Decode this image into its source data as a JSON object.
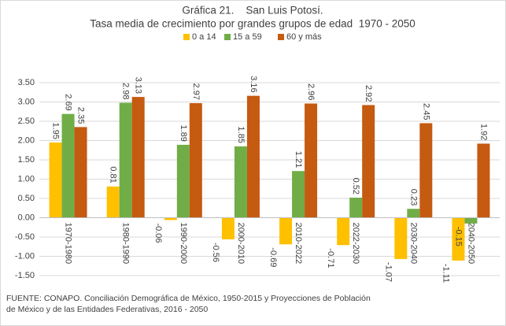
{
  "chart_data": {
    "type": "bar",
    "title": "Gráfica 21.    San Luis Potosí.",
    "subtitle": "Tasa media de crecimiento por grandes grupos de edad  1970 - 2050",
    "categories": [
      "1970-1980",
      "1980-1990",
      "1990-2000",
      "2000-2010",
      "2010-2022",
      "2022-2030",
      "2030-2040",
      "2040-2050"
    ],
    "series": [
      {
        "name": "0 a 14",
        "color": "#ffc000",
        "values": [
          1.95,
          0.81,
          -0.06,
          -0.56,
          -0.69,
          -0.71,
          -1.07,
          -1.11
        ]
      },
      {
        "name": "15 a 59",
        "color": "#70ad47",
        "values": [
          2.69,
          2.98,
          1.89,
          1.85,
          1.21,
          0.52,
          0.23,
          -0.15
        ]
      },
      {
        "name": "60 y más",
        "color": "#c55a11",
        "values": [
          2.35,
          3.13,
          2.97,
          3.16,
          2.96,
          2.92,
          2.45,
          1.92
        ]
      }
    ],
    "ylim": [
      -1.5,
      3.5
    ],
    "yticks": [
      {
        "value": -1.5,
        "label": "-1.50"
      },
      {
        "value": -1,
        "label": "-1.00"
      },
      {
        "value": -0.5,
        "label": "-0.50"
      },
      {
        "value": 0,
        "label": "0.00"
      },
      {
        "value": 0.5,
        "label": "0.50"
      },
      {
        "value": 1,
        "label": "1.00"
      },
      {
        "value": 1.5,
        "label": "1.50"
      },
      {
        "value": 2,
        "label": "2.00"
      },
      {
        "value": 2.5,
        "label": "2.50"
      },
      {
        "value": 3,
        "label": "3.00"
      },
      {
        "value": 3.5,
        "label": "3.50"
      }
    ],
    "grid": true,
    "legend": "top",
    "source": [
      "FUENTE: CONAPO. Conciliación Demográfica de México, 1950-2015 y Proyecciones de Población",
      "de México y de las Entidades Federativas, 2016 - 2050"
    ]
  }
}
